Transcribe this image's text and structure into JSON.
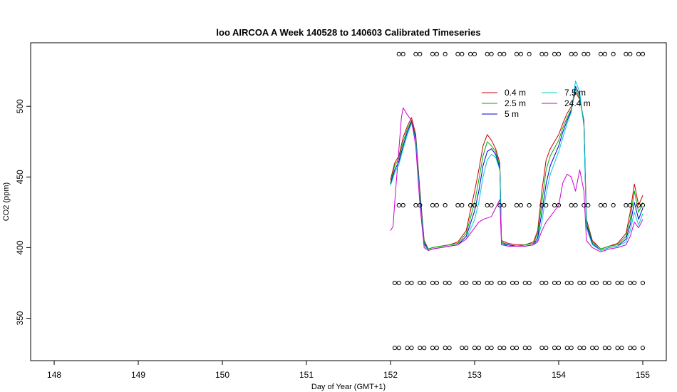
{
  "chart_data": {
    "type": "line",
    "title": "loo AIRCOA A  Week 140528 to 140603  Calibrated Timeseries",
    "xlabel": "Day of Year (GMT+1)",
    "ylabel": "CO2 (ppm)",
    "xlim": [
      147.72,
      155.28
    ],
    "ylim": [
      320,
      545
    ],
    "xticks": [
      148,
      149,
      150,
      151,
      152,
      153,
      154,
      155
    ],
    "yticks": [
      350,
      400,
      450,
      500
    ],
    "grid": false,
    "legend_position": "top-right",
    "series": [
      {
        "name": "0.4 m",
        "color": "#cc0000",
        "points": [
          [
            152.0,
            448
          ],
          [
            152.05,
            460
          ],
          [
            152.1,
            465
          ],
          [
            152.15,
            478
          ],
          [
            152.2,
            486
          ],
          [
            152.25,
            492
          ],
          [
            152.3,
            480
          ],
          [
            152.35,
            440
          ],
          [
            152.4,
            405
          ],
          [
            152.45,
            399
          ],
          [
            152.5,
            400
          ],
          [
            152.6,
            401
          ],
          [
            152.7,
            402
          ],
          [
            152.8,
            404
          ],
          [
            152.9,
            412
          ],
          [
            153.0,
            440
          ],
          [
            153.05,
            455
          ],
          [
            153.1,
            472
          ],
          [
            153.15,
            480
          ],
          [
            153.2,
            476
          ],
          [
            153.25,
            470
          ],
          [
            153.3,
            460
          ],
          [
            153.32,
            405
          ],
          [
            153.4,
            403
          ],
          [
            153.5,
            402
          ],
          [
            153.6,
            402
          ],
          [
            153.7,
            404
          ],
          [
            153.75,
            412
          ],
          [
            153.8,
            440
          ],
          [
            153.85,
            462
          ],
          [
            153.9,
            470
          ],
          [
            154.0,
            480
          ],
          [
            154.05,
            488
          ],
          [
            154.1,
            495
          ],
          [
            154.15,
            500
          ],
          [
            154.2,
            510
          ],
          [
            154.25,
            505
          ],
          [
            154.3,
            490
          ],
          [
            154.33,
            420
          ],
          [
            154.4,
            405
          ],
          [
            154.5,
            399
          ],
          [
            154.6,
            401
          ],
          [
            154.7,
            403
          ],
          [
            154.8,
            410
          ],
          [
            154.85,
            425
          ],
          [
            154.9,
            445
          ],
          [
            154.95,
            430
          ],
          [
            155.0,
            437
          ]
        ]
      },
      {
        "name": "2.5 m",
        "color": "#00aa00",
        "points": [
          [
            152.0,
            446
          ],
          [
            152.05,
            458
          ],
          [
            152.1,
            463
          ],
          [
            152.15,
            475
          ],
          [
            152.2,
            484
          ],
          [
            152.25,
            490
          ],
          [
            152.3,
            478
          ],
          [
            152.35,
            438
          ],
          [
            152.4,
            404
          ],
          [
            152.45,
            399
          ],
          [
            152.5,
            400
          ],
          [
            152.6,
            401
          ],
          [
            152.7,
            402
          ],
          [
            152.8,
            403
          ],
          [
            152.9,
            410
          ],
          [
            153.0,
            432
          ],
          [
            153.05,
            448
          ],
          [
            153.1,
            465
          ],
          [
            153.15,
            475
          ],
          [
            153.2,
            472
          ],
          [
            153.25,
            468
          ],
          [
            153.3,
            458
          ],
          [
            153.32,
            404
          ],
          [
            153.4,
            402
          ],
          [
            153.5,
            401
          ],
          [
            153.6,
            402
          ],
          [
            153.7,
            403
          ],
          [
            153.75,
            410
          ],
          [
            153.8,
            432
          ],
          [
            153.85,
            455
          ],
          [
            153.9,
            465
          ],
          [
            154.0,
            476
          ],
          [
            154.05,
            485
          ],
          [
            154.1,
            492
          ],
          [
            154.15,
            498
          ],
          [
            154.2,
            512
          ],
          [
            154.25,
            506
          ],
          [
            154.3,
            488
          ],
          [
            154.33,
            418
          ],
          [
            154.4,
            404
          ],
          [
            154.5,
            399
          ],
          [
            154.6,
            401
          ],
          [
            154.7,
            402
          ],
          [
            154.8,
            408
          ],
          [
            154.85,
            420
          ],
          [
            154.9,
            440
          ],
          [
            154.95,
            425
          ],
          [
            155.0,
            432
          ]
        ]
      },
      {
        "name": "5 m",
        "color": "#0000cc",
        "points": [
          [
            152.0,
            445
          ],
          [
            152.05,
            455
          ],
          [
            152.1,
            461
          ],
          [
            152.15,
            472
          ],
          [
            152.2,
            482
          ],
          [
            152.25,
            489
          ],
          [
            152.3,
            477
          ],
          [
            152.35,
            436
          ],
          [
            152.4,
            403
          ],
          [
            152.45,
            398
          ],
          [
            152.5,
            399
          ],
          [
            152.6,
            400
          ],
          [
            152.7,
            401
          ],
          [
            152.8,
            402
          ],
          [
            152.9,
            408
          ],
          [
            153.0,
            426
          ],
          [
            153.05,
            440
          ],
          [
            153.1,
            458
          ],
          [
            153.15,
            468
          ],
          [
            153.2,
            470
          ],
          [
            153.25,
            466
          ],
          [
            153.3,
            456
          ],
          [
            153.32,
            403
          ],
          [
            153.4,
            402
          ],
          [
            153.5,
            401
          ],
          [
            153.6,
            401
          ],
          [
            153.7,
            402
          ],
          [
            153.75,
            407
          ],
          [
            153.8,
            425
          ],
          [
            153.85,
            445
          ],
          [
            153.9,
            458
          ],
          [
            154.0,
            472
          ],
          [
            154.05,
            482
          ],
          [
            154.1,
            490
          ],
          [
            154.15,
            497
          ],
          [
            154.2,
            514
          ],
          [
            154.25,
            508
          ],
          [
            154.3,
            487
          ],
          [
            154.33,
            416
          ],
          [
            154.4,
            403
          ],
          [
            154.5,
            398
          ],
          [
            154.6,
            400
          ],
          [
            154.7,
            401
          ],
          [
            154.8,
            406
          ],
          [
            154.85,
            416
          ],
          [
            154.9,
            432
          ],
          [
            154.95,
            420
          ],
          [
            155.0,
            428
          ]
        ]
      },
      {
        "name": "7.5 m",
        "color": "#00cccc",
        "points": [
          [
            152.0,
            444
          ],
          [
            152.05,
            453
          ],
          [
            152.1,
            459
          ],
          [
            152.15,
            470
          ],
          [
            152.2,
            480
          ],
          [
            152.25,
            488
          ],
          [
            152.3,
            476
          ],
          [
            152.35,
            434
          ],
          [
            152.4,
            402
          ],
          [
            152.45,
            398
          ],
          [
            152.5,
            399
          ],
          [
            152.6,
            400
          ],
          [
            152.7,
            401
          ],
          [
            152.8,
            402
          ],
          [
            152.9,
            406
          ],
          [
            153.0,
            420
          ],
          [
            153.05,
            432
          ],
          [
            153.1,
            450
          ],
          [
            153.15,
            462
          ],
          [
            153.2,
            466
          ],
          [
            153.25,
            464
          ],
          [
            153.3,
            455
          ],
          [
            153.32,
            403
          ],
          [
            153.4,
            401
          ],
          [
            153.5,
            401
          ],
          [
            153.6,
            401
          ],
          [
            153.7,
            402
          ],
          [
            153.75,
            405
          ],
          [
            153.8,
            418
          ],
          [
            153.85,
            438
          ],
          [
            153.9,
            452
          ],
          [
            154.0,
            468
          ],
          [
            154.05,
            478
          ],
          [
            154.1,
            488
          ],
          [
            154.15,
            496
          ],
          [
            154.2,
            518
          ],
          [
            154.25,
            510
          ],
          [
            154.3,
            486
          ],
          [
            154.33,
            414
          ],
          [
            154.4,
            402
          ],
          [
            154.5,
            398
          ],
          [
            154.6,
            400
          ],
          [
            154.7,
            401
          ],
          [
            154.8,
            404
          ],
          [
            154.85,
            412
          ],
          [
            154.9,
            425
          ],
          [
            154.95,
            416
          ],
          [
            155.0,
            424
          ]
        ]
      },
      {
        "name": "24.4 m",
        "color": "#cc00cc",
        "points": [
          [
            152.0,
            412
          ],
          [
            152.03,
            415
          ],
          [
            152.06,
            440
          ],
          [
            152.1,
            470
          ],
          [
            152.13,
            492
          ],
          [
            152.15,
            499
          ],
          [
            152.2,
            494
          ],
          [
            152.25,
            490
          ],
          [
            152.3,
            472
          ],
          [
            152.35,
            430
          ],
          [
            152.4,
            400
          ],
          [
            152.45,
            398
          ],
          [
            152.5,
            399
          ],
          [
            152.6,
            400
          ],
          [
            152.7,
            401
          ],
          [
            152.8,
            402
          ],
          [
            152.9,
            406
          ],
          [
            153.0,
            414
          ],
          [
            153.05,
            418
          ],
          [
            153.1,
            420
          ],
          [
            153.15,
            421
          ],
          [
            153.2,
            422
          ],
          [
            153.25,
            428
          ],
          [
            153.3,
            434
          ],
          [
            153.32,
            402
          ],
          [
            153.4,
            401
          ],
          [
            153.5,
            401
          ],
          [
            153.6,
            401
          ],
          [
            153.7,
            402
          ],
          [
            153.75,
            404
          ],
          [
            153.8,
            412
          ],
          [
            153.85,
            418
          ],
          [
            153.9,
            422
          ],
          [
            154.0,
            430
          ],
          [
            154.05,
            446
          ],
          [
            154.1,
            452
          ],
          [
            154.15,
            450
          ],
          [
            154.2,
            440
          ],
          [
            154.25,
            455
          ],
          [
            154.3,
            440
          ],
          [
            154.33,
            405
          ],
          [
            154.4,
            400
          ],
          [
            154.5,
            397
          ],
          [
            154.6,
            399
          ],
          [
            154.7,
            400
          ],
          [
            154.8,
            402
          ],
          [
            154.85,
            408
          ],
          [
            154.9,
            418
          ],
          [
            154.95,
            414
          ],
          [
            155.0,
            420
          ]
        ]
      }
    ],
    "flag_markers": [
      {
        "y": 537,
        "x": [
          152.1,
          152.15,
          152.3,
          152.35,
          152.5,
          152.55,
          152.65,
          152.8,
          152.85,
          152.95,
          153.0,
          153.15,
          153.2,
          153.3,
          153.35,
          153.5,
          153.55,
          153.65,
          153.8,
          153.85,
          153.95,
          154.0,
          154.15,
          154.2,
          154.3,
          154.35,
          154.5,
          154.55,
          154.65,
          154.8,
          154.85,
          154.95,
          155.0
        ]
      },
      {
        "y": 430,
        "x": [
          152.1,
          152.15,
          152.3,
          152.35,
          152.5,
          152.55,
          152.65,
          152.8,
          152.85,
          152.95,
          153.0,
          153.15,
          153.2,
          153.3,
          153.35,
          153.5,
          153.55,
          153.65,
          153.8,
          153.85,
          153.95,
          154.0,
          154.15,
          154.2,
          154.3,
          154.35,
          154.5,
          154.55,
          154.65,
          154.8,
          154.85,
          154.95,
          155.0
        ]
      },
      {
        "y": 375,
        "x": [
          152.05,
          152.1,
          152.2,
          152.25,
          152.35,
          152.4,
          152.5,
          152.55,
          152.65,
          152.7,
          152.85,
          152.9,
          153.0,
          153.05,
          153.15,
          153.2,
          153.3,
          153.35,
          153.45,
          153.5,
          153.6,
          153.65,
          153.8,
          153.85,
          153.95,
          154.0,
          154.1,
          154.15,
          154.25,
          154.3,
          154.4,
          154.45,
          154.55,
          154.6,
          154.7,
          154.75,
          154.85,
          154.9,
          155.0
        ]
      },
      {
        "y": 329,
        "x": [
          152.05,
          152.1,
          152.2,
          152.25,
          152.35,
          152.4,
          152.5,
          152.55,
          152.65,
          152.7,
          152.85,
          152.9,
          153.0,
          153.05,
          153.15,
          153.2,
          153.3,
          153.35,
          153.45,
          153.5,
          153.6,
          153.65,
          153.8,
          153.85,
          153.95,
          154.0,
          154.1,
          154.15,
          154.25,
          154.3,
          154.4,
          154.45,
          154.55,
          154.6,
          154.7,
          154.75,
          154.85,
          154.9,
          155.0
        ]
      }
    ]
  }
}
